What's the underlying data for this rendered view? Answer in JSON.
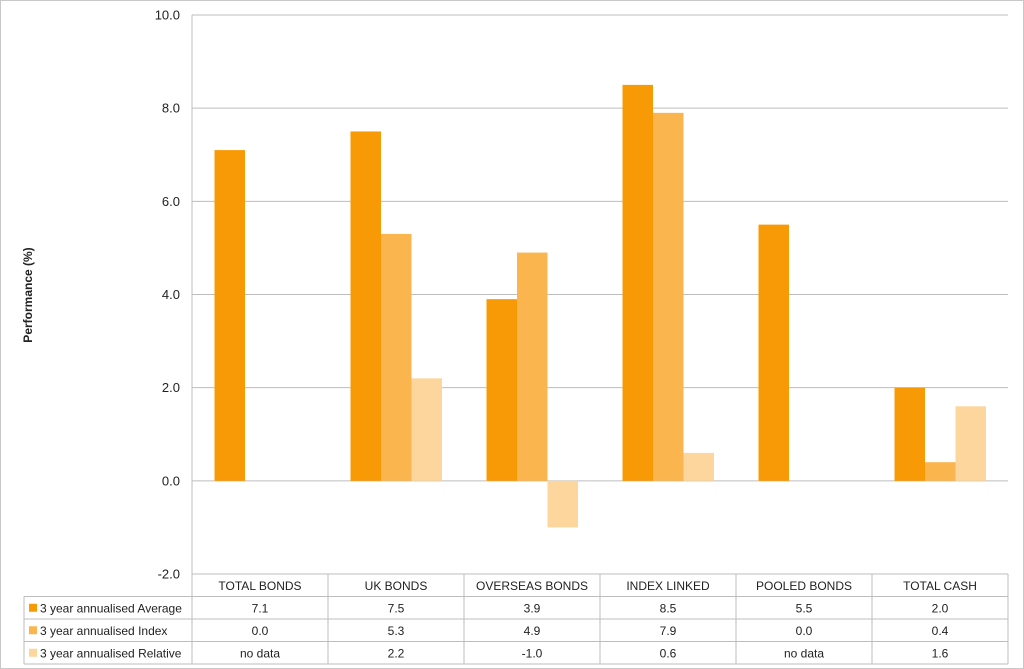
{
  "chart_data": {
    "type": "bar",
    "ylabel": "Performance (%)",
    "ylim": [
      -2.0,
      10.0
    ],
    "yticks": [
      "10.0",
      "8.0",
      "6.0",
      "4.0",
      "2.0",
      "0.0",
      "-2.0"
    ],
    "grid": true,
    "legend": "data table",
    "categories": [
      "TOTAL BONDS",
      "UK BONDS",
      "OVERSEAS BONDS",
      "INDEX LINKED",
      "POOLED BONDS",
      "TOTAL CASH"
    ],
    "series": [
      {
        "name": "3 year annualised Average",
        "color": "#f79a05",
        "values": [
          7.1,
          7.5,
          3.9,
          8.5,
          5.5,
          2.0
        ],
        "labels": [
          "7.1",
          "7.5",
          "3.9",
          "8.5",
          "5.5",
          "2.0"
        ]
      },
      {
        "name": "3 year annualised Index",
        "color": "#fbb54e",
        "values": [
          0.0,
          5.3,
          4.9,
          7.9,
          0.0,
          0.4
        ],
        "labels": [
          "0.0",
          "5.3",
          "4.9",
          "7.9",
          "0.0",
          "0.4"
        ]
      },
      {
        "name": "3 year annualised Relative",
        "color": "#fcd69c",
        "values": [
          null,
          2.2,
          -1.0,
          0.6,
          null,
          1.6
        ],
        "labels": [
          "no data",
          "2.2",
          "-1.0",
          "0.6",
          "no data",
          "1.6"
        ]
      }
    ]
  }
}
